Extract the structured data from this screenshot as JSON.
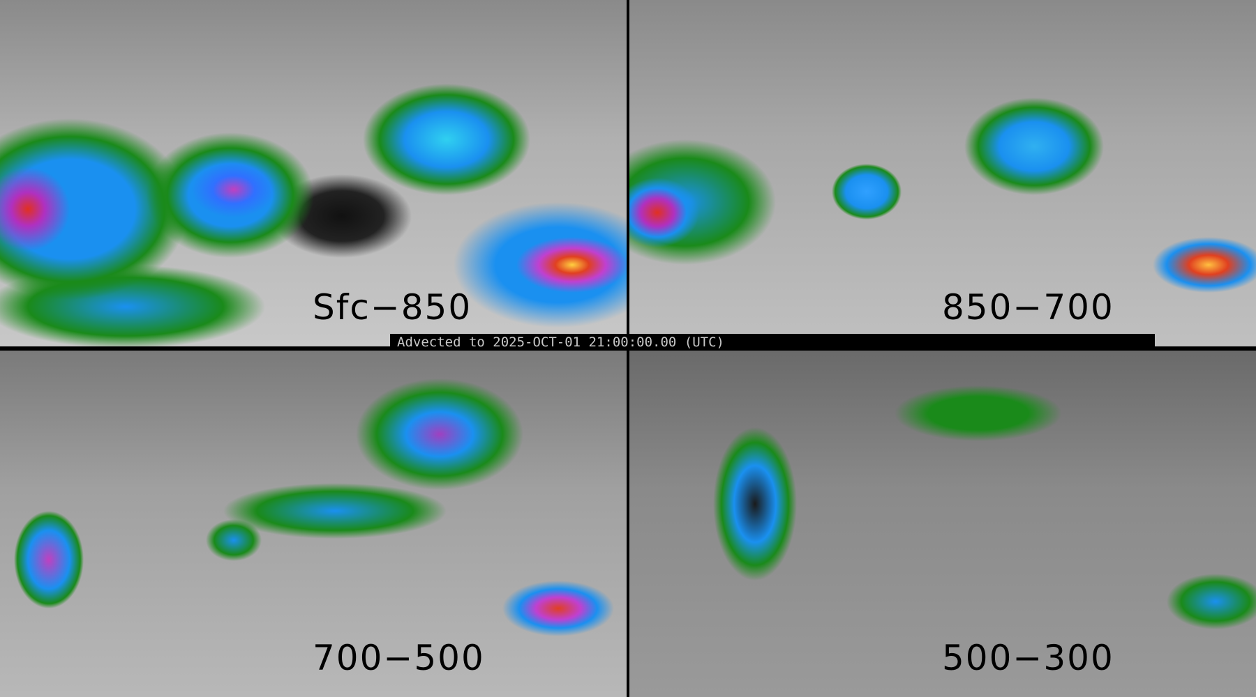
{
  "panels": [
    {
      "label": "Sfc−850"
    },
    {
      "label": "850−700"
    },
    {
      "label": "700−500"
    },
    {
      "label": "500−300"
    }
  ],
  "banner": {
    "text": "Advected to 2025-OCT-01 21:00:00.00 (UTC)"
  },
  "colors": {
    "background": "#000000",
    "low": "#1a8a1a",
    "mid": "#1a90f0",
    "high": "#c040c0",
    "extreme": "#e04020"
  }
}
